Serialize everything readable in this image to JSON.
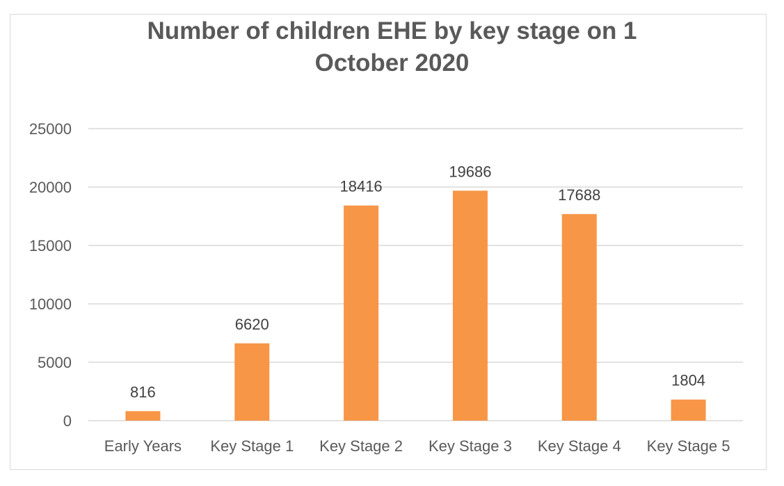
{
  "chart_data": {
    "type": "bar",
    "title_lines": [
      "Number of children EHE by key stage on 1",
      "October 2020"
    ],
    "categories": [
      "Early Years",
      "Key Stage 1",
      "Key Stage 2",
      "Key Stage 3",
      "Key Stage 4",
      "Key Stage 5"
    ],
    "values": [
      816,
      6620,
      18416,
      19686,
      17688,
      1804
    ],
    "data_labels": [
      "816",
      "6620",
      "18416",
      "19686",
      "17688",
      "1804"
    ],
    "y_ticks": [
      "0",
      "5000",
      "10000",
      "15000",
      "20000",
      "25000"
    ],
    "ylim": [
      0,
      25000
    ],
    "grid": true,
    "bar_color": "#F79646",
    "gridline_color": "#D9D9D9"
  }
}
